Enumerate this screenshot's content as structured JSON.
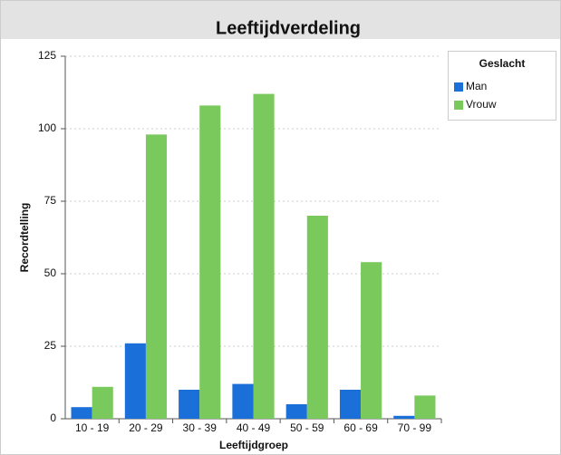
{
  "chart_data": {
    "type": "bar",
    "title": "Leeftijdverdeling",
    "x_label": "Leeftijdgroep",
    "y_label": "Recordtelling",
    "categories": [
      "10 - 19",
      "20 - 29",
      "30 - 39",
      "40 - 49",
      "50 - 59",
      "60 - 69",
      "70 - 99"
    ],
    "series": [
      {
        "name": "Man",
        "color": "#1a6fd8",
        "values": [
          4,
          26,
          10,
          12,
          5,
          10,
          1
        ]
      },
      {
        "name": "Vrouw",
        "color": "#79c95c",
        "values": [
          11,
          98,
          108,
          112,
          70,
          54,
          8
        ]
      }
    ],
    "ylim": [
      0,
      125
    ],
    "yticks": [
      0,
      25,
      50,
      75,
      100,
      125
    ],
    "grid": true,
    "legend_title": "Geslacht",
    "legend_position": "right"
  }
}
